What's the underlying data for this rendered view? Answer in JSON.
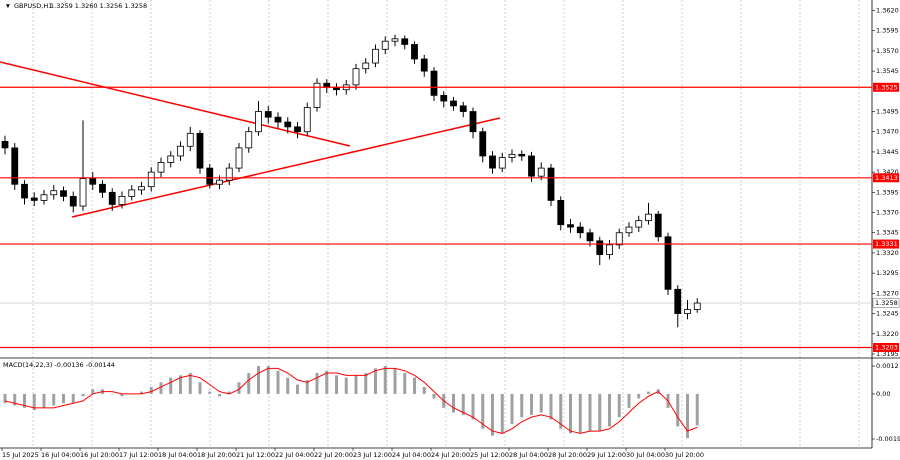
{
  "chart_data": [
    {
      "type": "candlestick",
      "symbol": "GBPUSD,H1",
      "quote": "1.3259 1.3260 1.3256 1.3258",
      "categories": [
        "15 Jul 2025",
        null,
        null,
        null,
        "16 Jul 04:00",
        null,
        null,
        null,
        "16 Jul 20:00",
        null,
        null,
        null,
        "17 Jul 12:00",
        null,
        null,
        null,
        "18 Jul 04:00",
        null,
        null,
        null,
        "18 Jul 20:00",
        null,
        null,
        null,
        "21 Jul 12:00",
        null,
        null,
        null,
        "22 Jul 04:00",
        null,
        null,
        null,
        "22 Jul 20:00",
        null,
        null,
        null,
        "23 Jul 12:00",
        null,
        null,
        null,
        "24 Jul 04:00",
        null,
        null,
        null,
        "24 Jul 20:00",
        null,
        null,
        null,
        "25 Jul 12:00",
        null,
        null,
        null,
        "28 Jul 04:00",
        null,
        null,
        null,
        "28 Jul 20:00",
        null,
        null,
        null,
        "29 Jul 12:00",
        null,
        null,
        null,
        "30 Jul 04:00",
        null,
        null,
        null,
        "30 Jul 20:00",
        null,
        null,
        null
      ],
      "open": [
        1.3458,
        1.345,
        1.3405,
        1.3388,
        1.3385,
        1.3392,
        1.3397,
        1.339,
        1.3378,
        1.3412,
        1.3405,
        1.3395,
        1.338,
        1.339,
        1.3398,
        1.3402,
        1.342,
        1.3432,
        1.344,
        1.3452,
        1.3468,
        1.3425,
        1.3405,
        1.341,
        1.3425,
        1.345,
        1.347,
        1.3495,
        1.3488,
        1.3482,
        1.3476,
        1.347,
        1.35,
        1.353,
        1.3525,
        1.3522,
        1.3528,
        1.3548,
        1.3555,
        1.3572,
        1.3582,
        1.3585,
        1.3578,
        1.356,
        1.3545,
        1.3515,
        1.3508,
        1.3502,
        1.3495,
        1.347,
        1.344,
        1.3425,
        1.3438,
        1.3442,
        1.344,
        1.3415,
        1.3425,
        1.3385,
        1.3355,
        1.3352,
        1.3345,
        1.3335,
        1.3318,
        1.333,
        1.3345,
        1.3352,
        1.336,
        1.3368,
        1.334,
        1.3275,
        1.3245,
        1.325
      ],
      "high": [
        1.3465,
        1.3456,
        1.341,
        1.3395,
        1.3398,
        1.3404,
        1.3402,
        1.3396,
        1.3484,
        1.342,
        1.341,
        1.34,
        1.3396,
        1.3404,
        1.3408,
        1.3426,
        1.3438,
        1.3446,
        1.3458,
        1.3476,
        1.3472,
        1.343,
        1.3416,
        1.3431,
        1.3456,
        1.3476,
        1.3508,
        1.3502,
        1.3494,
        1.3488,
        1.3482,
        1.3506,
        1.3536,
        1.3535,
        1.353,
        1.3534,
        1.3554,
        1.3561,
        1.3578,
        1.3588,
        1.359,
        1.3589,
        1.3582,
        1.3565,
        1.355,
        1.352,
        1.3513,
        1.3507,
        1.35,
        1.3475,
        1.3446,
        1.3444,
        1.3448,
        1.3447,
        1.3445,
        1.3432,
        1.343,
        1.339,
        1.3362,
        1.3358,
        1.335,
        1.334,
        1.3336,
        1.335,
        1.3358,
        1.3366,
        1.3382,
        1.3372,
        1.3345,
        1.328,
        1.3262,
        1.3264
      ],
      "low": [
        1.3442,
        1.3398,
        1.338,
        1.3378,
        1.338,
        1.3386,
        1.3384,
        1.337,
        1.3372,
        1.3398,
        1.3388,
        1.3372,
        1.3375,
        1.3385,
        1.3392,
        1.3396,
        1.3414,
        1.3426,
        1.3434,
        1.3446,
        1.3418,
        1.34,
        1.3399,
        1.3404,
        1.342,
        1.3444,
        1.3465,
        1.348,
        1.3474,
        1.3468,
        1.3462,
        1.3465,
        1.3495,
        1.3518,
        1.3515,
        1.3516,
        1.3522,
        1.3542,
        1.355,
        1.3566,
        1.3576,
        1.3572,
        1.3554,
        1.3538,
        1.3508,
        1.35,
        1.3496,
        1.3488,
        1.3462,
        1.3432,
        1.3418,
        1.342,
        1.3432,
        1.3434,
        1.3408,
        1.341,
        1.3378,
        1.3348,
        1.3345,
        1.3338,
        1.3328,
        1.3305,
        1.3312,
        1.3325,
        1.334,
        1.3346,
        1.3355,
        1.3334,
        1.3268,
        1.3228,
        1.3238,
        1.3246
      ],
      "close": [
        1.345,
        1.3405,
        1.3388,
        1.3385,
        1.3392,
        1.3397,
        1.339,
        1.3378,
        1.3412,
        1.3405,
        1.3395,
        1.338,
        1.339,
        1.3398,
        1.3402,
        1.342,
        1.3432,
        1.344,
        1.3452,
        1.3468,
        1.3425,
        1.3405,
        1.341,
        1.3425,
        1.345,
        1.347,
        1.3495,
        1.3488,
        1.3482,
        1.3476,
        1.347,
        1.35,
        1.353,
        1.3525,
        1.3522,
        1.3528,
        1.3548,
        1.3555,
        1.3572,
        1.3582,
        1.3585,
        1.3578,
        1.356,
        1.3545,
        1.3515,
        1.3508,
        1.3502,
        1.3495,
        1.347,
        1.344,
        1.3425,
        1.3438,
        1.3442,
        1.344,
        1.3415,
        1.3425,
        1.3385,
        1.3355,
        1.3352,
        1.3345,
        1.3335,
        1.3318,
        1.333,
        1.3345,
        1.3352,
        1.336,
        1.3368,
        1.334,
        1.3275,
        1.3245,
        1.325,
        1.3258
      ],
      "ylim": [
        1.319,
        1.3633
      ],
      "yticks": [
        {
          "value": 1.362,
          "label": "1.3620"
        },
        1.3595,
        {
          "value": 1.357,
          "label": "1.3570"
        },
        1.3545,
        1.3495,
        {
          "value": 1.347,
          "label": "1.3470"
        },
        1.3445,
        {
          "value": 1.342,
          "label": "1.3420"
        },
        1.3395,
        {
          "value": 1.337,
          "label": "1.3370"
        },
        1.3345,
        {
          "value": 1.332,
          "label": "1.3320"
        },
        1.3295,
        {
          "value": 1.327,
          "label": "1.3270"
        },
        1.3245,
        {
          "value": 1.322,
          "label": "1.3220"
        },
        1.3195
      ],
      "levels": [
        1.3525,
        1.3413,
        1.3331,
        1.3203
      ],
      "level_color": "#ff0000",
      "last_price": 1.3258,
      "bull_color": "#ffffff",
      "bear_color": "#000000"
    },
    {
      "type": "macd",
      "label": "MACD(14,22,3) -0.00136 -0.00144",
      "histogram": {
        "color": "#a0a0a0",
        "values": [
          -0.0004,
          -0.0005,
          -0.0006,
          -0.0007,
          -0.0006,
          -0.0005,
          -0.0004,
          -0.0004,
          -0.0001,
          0.0002,
          0.0002,
          0,
          -0.0001,
          0,
          0.0001,
          0.0003,
          0.0005,
          0.0007,
          0.0008,
          0.0009,
          0.0005,
          0.0001,
          -0.0001,
          0.0001,
          0.0005,
          0.0009,
          0.0012,
          0.0012,
          0.001,
          0.0007,
          0.0004,
          0.0006,
          0.0009,
          0.001,
          0.0008,
          0.0007,
          0.0008,
          0.0009,
          0.0011,
          0.0012,
          0.0011,
          0.0009,
          0.0007,
          0.0003,
          -0.0002,
          -0.0006,
          -0.0008,
          -0.0009,
          -0.0011,
          -0.0015,
          -0.0018,
          -0.0017,
          -0.0013,
          -0.001,
          -0.0009,
          -0.0008,
          -0.0011,
          -0.0015,
          -0.0017,
          -0.0017,
          -0.0016,
          -0.0016,
          -0.0014,
          -0.001,
          -0.0006,
          -0.0002,
          0.0001,
          0.0002,
          -0.0006,
          -0.0014,
          -0.0019,
          -0.00136
        ]
      },
      "signal": {
        "color": "#ff0000",
        "values": [
          -0.0003,
          -0.0004,
          -0.0005,
          -0.0006,
          -0.0006,
          -0.0006,
          -0.0005,
          -0.0004,
          -0.0003,
          0,
          0.0001,
          0.0001,
          0,
          0,
          0,
          0.0001,
          0.0003,
          0.0005,
          0.0007,
          0.0008,
          0.0007,
          0.0004,
          0.0001,
          0,
          0.0002,
          0.0006,
          0.0009,
          0.0011,
          0.0011,
          0.0009,
          0.0006,
          0.0005,
          0.0007,
          0.0009,
          0.0009,
          0.0008,
          0.0008,
          0.0008,
          0.001,
          0.0011,
          0.0011,
          0.001,
          0.0008,
          0.0005,
          0.0001,
          -0.0003,
          -0.0006,
          -0.0008,
          -0.001,
          -0.0013,
          -0.0016,
          -0.0017,
          -0.0015,
          -0.0012,
          -0.001,
          -0.0009,
          -0.001,
          -0.0013,
          -0.0016,
          -0.0017,
          -0.0016,
          -0.0016,
          -0.0015,
          -0.0012,
          -0.0008,
          -0.0004,
          -0.0001,
          0.0001,
          -0.0003,
          -0.001,
          -0.0016,
          -0.00144
        ]
      },
      "ylim": [
        -0.0025,
        0.00146
      ],
      "yticks": [
        0.0012,
        {
          "value": 0,
          "label": "0.00"
        },
        -0.00194
      ]
    }
  ]
}
